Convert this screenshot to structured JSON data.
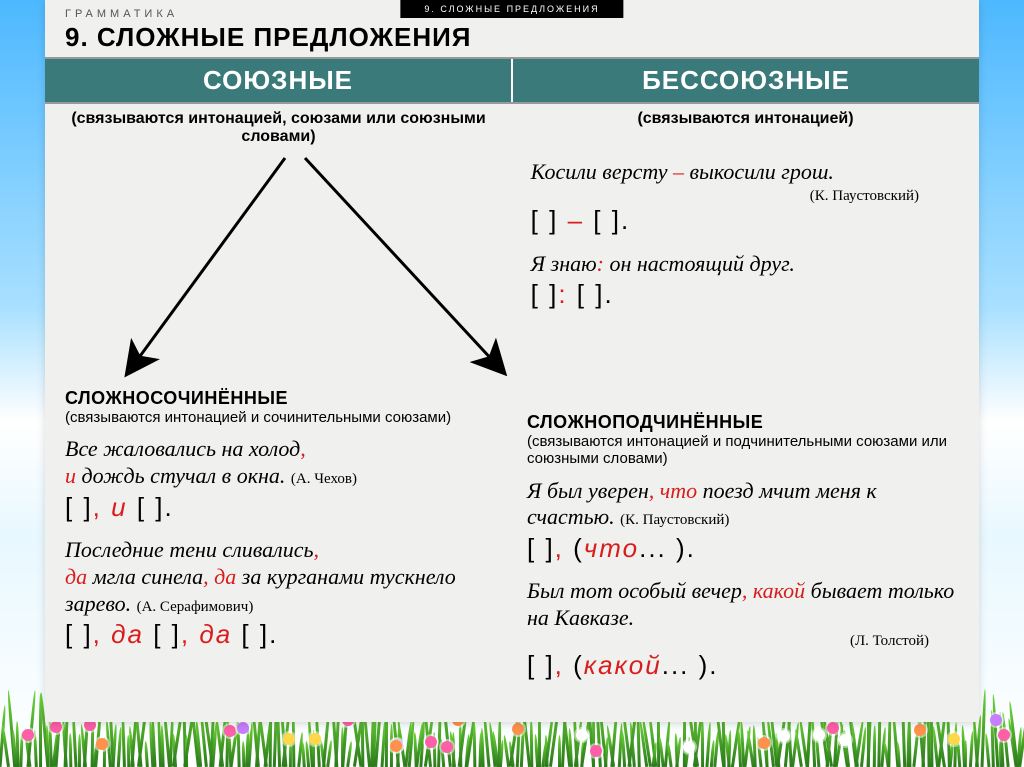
{
  "top": {
    "small_label": "ГРАММАТИКА",
    "tab": "9. СЛОЖНЫЕ ПРЕДЛОЖЕНИЯ",
    "title": "9. СЛОЖНЫЕ  ПРЕДЛОЖЕНИЯ"
  },
  "headers": {
    "left": "СОЮЗНЫЕ",
    "right": "БЕССОЮЗНЫЕ",
    "left_sub": "(связываются интонацией, союзами или союзными словами)",
    "right_sub": "(связываются интонацией)"
  },
  "right_upper": {
    "ex1_a": "Косили версту ",
    "ex1_dash": "–",
    "ex1_b": " выкосили грош.",
    "ex1_author": "(К. Паустовский)",
    "scheme1_a": "[    ] ",
    "scheme1_dash": "–",
    "scheme1_b": " [    ].",
    "ex2_a": "Я знаю",
    "ex2_colon": ":",
    "ex2_b": " он настоящий друг.",
    "scheme2_a": "[    ]",
    "scheme2_colon": ":",
    "scheme2_b": " [    ]."
  },
  "lower_left": {
    "title": "СЛОЖНОСОЧИНЁННЫЕ",
    "sub": "(связываются интонацией и сочинительными союзами)",
    "ex1_a": "Все жаловались  на холод",
    "ex1_comma": ",",
    "ex1_b": "и",
    "ex1_c": " дождь стучал в окна.",
    "ex1_author": "(А. Чехов)",
    "scheme1_a": "[    ]",
    "scheme1_comma1": ",",
    "scheme1_u": " и ",
    "scheme1_b": "[    ].",
    "ex2_a": "Последние тени сливались",
    "ex2_comma1": ",",
    "ex2_da1": "да",
    "ex2_b": " мгла синела",
    "ex2_comma2": ", ",
    "ex2_da2": "да",
    "ex2_c": " за курганами тускнело зарево.",
    "ex2_author": "(А. Серафимович)",
    "scheme2_a": "[    ]",
    "scheme2_c1": ", ",
    "scheme2_da1": "да",
    "scheme2_b": " [    ]",
    "scheme2_c2": ", ",
    "scheme2_da2": "да",
    "scheme2_c": " [    ]."
  },
  "lower_right": {
    "title": "СЛОЖНОПОДЧИНЁННЫЕ",
    "sub": "(связываются интонацией и подчинительными союзами или союзными словами)",
    "ex1_a": "Я был уверен",
    "ex1_comma": ", ",
    "ex1_chto": "что",
    "ex1_b": " поезд мчит меня к счастью.",
    "ex1_author": "(К. Паустовский)",
    "scheme1_a": "[    ]",
    "scheme1_comma": ", ",
    "scheme1_p1": "(",
    "scheme1_chto": "что",
    "scheme1_p2": "... ).",
    "ex2_a": "Был тот особый вечер",
    "ex2_comma": ", ",
    "ex2_kakoy": "какой",
    "ex2_b": " бывает только на Кавказе.",
    "ex2_author": "(Л. Толстой)",
    "scheme2_a": "[    ]",
    "scheme2_comma": ", ",
    "scheme2_p1": "(",
    "scheme2_kakoy": "какой",
    "scheme2_p2": "... )."
  },
  "colors": {
    "header_bg": "#3a7a7a",
    "red": "#d91c1c",
    "card_bg": "#f0f0ee"
  }
}
